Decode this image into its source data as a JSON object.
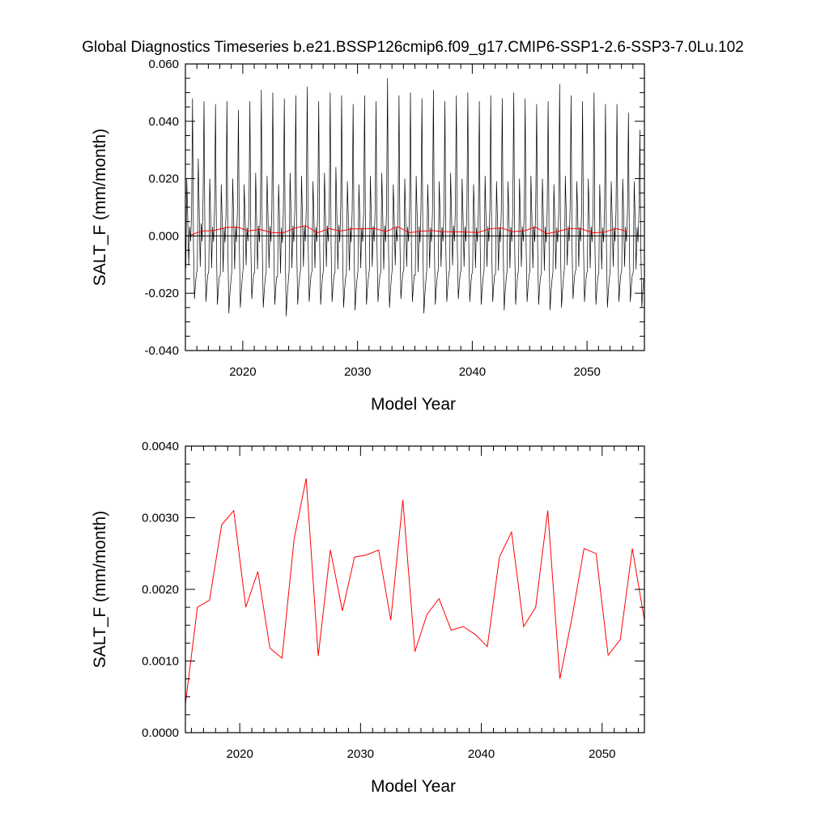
{
  "title": "Global Diagnostics Timeseries b.e21.BSSP126cmip6.f09_g17.CMIP6-SSP1-2.6-SSP3-7.0Lu.102",
  "colors": {
    "monthly": "#000000",
    "annual": "#ff0000",
    "axis": "#000000"
  },
  "chart_data": [
    {
      "type": "line",
      "xlabel": "Model Year",
      "ylabel": "SALT_F (mm/month)",
      "xlim": [
        2015,
        2055
      ],
      "ylim": [
        -0.04,
        0.06
      ],
      "x_ticks": [
        2020,
        2030,
        2040,
        2050
      ],
      "x_tick_labels": [
        "2020",
        "2030",
        "2040",
        "2050"
      ],
      "y_ticks": [
        -0.04,
        -0.02,
        0.0,
        0.02,
        0.04,
        0.06
      ],
      "y_tick_labels": [
        "-0.040",
        "-0.020",
        "0.000",
        "0.020",
        "0.040",
        "0.060"
      ],
      "zero_line": true,
      "series": [
        {
          "color": "#000000",
          "x_start": 2015.04,
          "x_step": 0.0833,
          "peaks": [
            0.048,
            0.047,
            0.046,
            0.047,
            0.044,
            0.047,
            0.051,
            0.05,
            0.048,
            0.049,
            0.052,
            0.047,
            0.05,
            0.049,
            0.046,
            0.049,
            0.047,
            0.055,
            0.049,
            0.05,
            0.048,
            0.051,
            0.047,
            0.049,
            0.05,
            0.047,
            0.049,
            0.048,
            0.05,
            0.048,
            0.046,
            0.047,
            0.053,
            0.049,
            0.047,
            0.05,
            0.046,
            0.046,
            0.043,
            0.037
          ],
          "secondary_peaks": [
            0.02,
            0.027,
            0.02,
            0.018,
            0.02,
            0.018,
            0.022,
            0.021,
            0.018,
            0.022,
            0.021,
            0.019,
            0.022,
            0.024,
            0.019,
            0.018,
            0.021,
            0.022,
            0.018,
            0.02,
            0.021,
            0.018,
            0.019,
            0.022,
            0.02,
            0.018,
            0.021,
            0.019,
            0.019,
            0.02,
            0.021,
            0.02,
            0.018,
            0.021,
            0.019,
            0.02,
            0.018,
            0.019,
            0.02,
            0.019
          ],
          "troughs": [
            -0.022,
            -0.023,
            -0.024,
            -0.027,
            -0.025,
            -0.022,
            -0.025,
            -0.024,
            -0.028,
            -0.024,
            -0.023,
            -0.024,
            -0.023,
            -0.025,
            -0.026,
            -0.024,
            -0.023,
            -0.025,
            -0.022,
            -0.023,
            -0.027,
            -0.024,
            -0.023,
            -0.022,
            -0.023,
            -0.024,
            -0.023,
            -0.026,
            -0.024,
            -0.023,
            -0.024,
            -0.026,
            -0.025,
            -0.022,
            -0.023,
            -0.024,
            -0.025,
            -0.023,
            -0.023,
            -0.025
          ]
        },
        {
          "color": "#ff0000",
          "x": [
            2015.5,
            2016.5,
            2017.5,
            2018.5,
            2019.5,
            2020.5,
            2021.5,
            2022.5,
            2023.5,
            2024.5,
            2025.5,
            2026.5,
            2027.5,
            2028.5,
            2029.5,
            2030.5,
            2031.5,
            2032.5,
            2033.5,
            2034.5,
            2035.5,
            2036.5,
            2037.5,
            2038.5,
            2039.5,
            2040.5,
            2041.5,
            2042.5,
            2043.5,
            2044.5,
            2045.5,
            2046.5,
            2047.5,
            2048.5,
            2049.5,
            2050.5,
            2051.5,
            2052.5,
            2053.5
          ],
          "values": [
            0.0004,
            0.00175,
            0.00185,
            0.0029,
            0.0031,
            0.00175,
            0.00225,
            0.00118,
            0.00104,
            0.0027,
            0.00355,
            0.00107,
            0.00255,
            0.0017,
            0.00245,
            0.00248,
            0.00255,
            0.00157,
            0.00325,
            0.00113,
            0.00165,
            0.00187,
            0.00143,
            0.00148,
            0.00137,
            0.0012,
            0.00245,
            0.0028,
            0.00148,
            0.00175,
            0.0031,
            0.00075,
            0.0016,
            0.00257,
            0.0025,
            0.00108,
            0.0013,
            0.00257,
            0.00157
          ]
        }
      ]
    },
    {
      "type": "line",
      "xlabel": "Model Year",
      "ylabel": "SALT_F (mm/month)",
      "xlim": [
        2015.5,
        2053.5
      ],
      "ylim": [
        0.0,
        0.004
      ],
      "x_ticks": [
        2020,
        2030,
        2040,
        2050
      ],
      "x_tick_labels": [
        "2020",
        "2030",
        "2040",
        "2050"
      ],
      "y_ticks": [
        0.0,
        0.001,
        0.002,
        0.003,
        0.004
      ],
      "y_tick_labels": [
        "0.0000",
        "0.0010",
        "0.0020",
        "0.0030",
        "0.0040"
      ],
      "series": [
        {
          "color": "#ff0000",
          "x": [
            2015.5,
            2016.5,
            2017.5,
            2018.5,
            2019.5,
            2020.5,
            2021.5,
            2022.5,
            2023.5,
            2024.5,
            2025.5,
            2026.5,
            2027.5,
            2028.5,
            2029.5,
            2030.5,
            2031.5,
            2032.5,
            2033.5,
            2034.5,
            2035.5,
            2036.5,
            2037.5,
            2038.5,
            2039.5,
            2040.5,
            2041.5,
            2042.5,
            2043.5,
            2044.5,
            2045.5,
            2046.5,
            2047.5,
            2048.5,
            2049.5,
            2050.5,
            2051.5,
            2052.5,
            2053.5
          ],
          "values": [
            0.0004,
            0.00175,
            0.00185,
            0.0029,
            0.0031,
            0.00175,
            0.00225,
            0.00118,
            0.00104,
            0.0027,
            0.00355,
            0.00107,
            0.00255,
            0.0017,
            0.00245,
            0.00248,
            0.00255,
            0.00157,
            0.00325,
            0.00113,
            0.00165,
            0.00187,
            0.00143,
            0.00148,
            0.00137,
            0.0012,
            0.00245,
            0.0028,
            0.00148,
            0.00175,
            0.0031,
            0.00075,
            0.0016,
            0.00257,
            0.0025,
            0.00108,
            0.0013,
            0.00257,
            0.00157
          ]
        }
      ]
    }
  ]
}
